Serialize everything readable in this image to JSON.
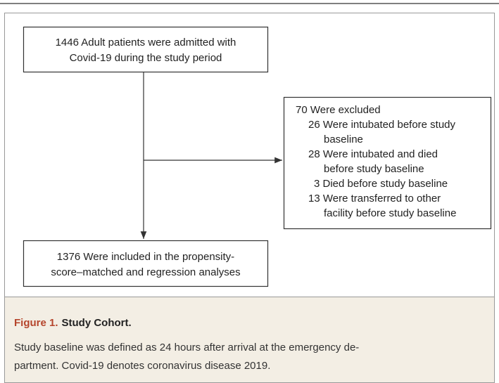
{
  "nodes": [
    {
      "lines": [
        "1446 Adult patients were admitted with",
        "Covid-19 during the study period"
      ]
    },
    {
      "title": "70 Were excluded",
      "items": [
        {
          "lines": [
            "26 Were intubated before study",
            "baseline"
          ]
        },
        {
          "lines": [
            "28 Were intubated and died",
            "before study baseline"
          ]
        },
        {
          "lines": [
            "3 Died before study baseline"
          ]
        },
        {
          "lines": [
            "13 Were transferred to other",
            "facility before study baseline"
          ]
        }
      ]
    },
    {
      "lines": [
        "1376 Were included in the propensity-",
        "score–matched and regression analyses"
      ]
    }
  ],
  "caption": {
    "label": "Figure 1.",
    "title": "Study Cohort.",
    "lines": [
      "Study baseline was defined as 24 hours after arrival at the emergency de-",
      "partment. Covid-19 denotes coronavirus disease 2019."
    ]
  }
}
